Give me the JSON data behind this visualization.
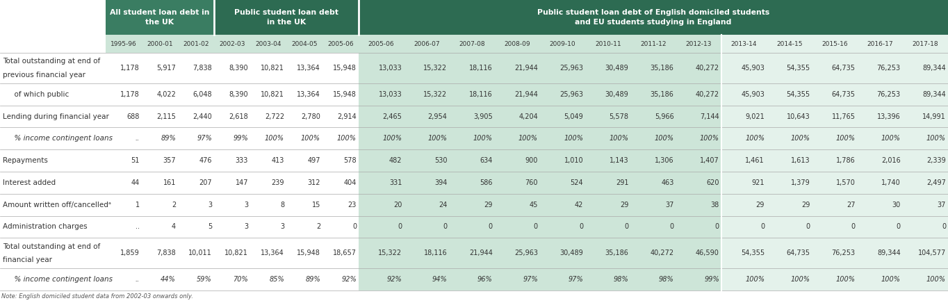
{
  "col_headers_row1_g1": "All student loan debt in\nthe UK",
  "col_headers_row1_g2": "Public student loan debt\nin the UK",
  "col_headers_row1_g3": "Public student loan debt of English domiciled students\nand EU students studying in England",
  "col_headers_row2": [
    "1995-96",
    "2000-01",
    "2001-02",
    "2002-03",
    "2003-04",
    "2004-05",
    "2005-06",
    "2005-06",
    "2006-07",
    "2007-08",
    "2008-09",
    "2009-10",
    "2010-11",
    "2011-12",
    "2012-13",
    "2013-14",
    "2014-15",
    "2015-16",
    "2016-17",
    "2017-18"
  ],
  "rows": [
    {
      "label": "Total outstanding at end of",
      "label2": "previous financial year",
      "indent": 0,
      "double": true,
      "values": [
        "1,178",
        "5,917",
        "7,838",
        "8,390",
        "10,821",
        "13,364",
        "15,948",
        "13,033",
        "15,322",
        "18,116",
        "21,944",
        "25,963",
        "30,489",
        "35,186",
        "40,272",
        "45,903",
        "54,355",
        "64,735",
        "76,253",
        "89,344"
      ]
    },
    {
      "label": "  of which public",
      "indent": 1,
      "double": false,
      "values": [
        "1,178",
        "4,022",
        "6,048",
        "8,390",
        "10,821",
        "13,364",
        "15,948",
        "13,033",
        "15,322",
        "18,116",
        "21,944",
        "25,963",
        "30,489",
        "35,186",
        "40,272",
        "45,903",
        "54,355",
        "64,735",
        "76,253",
        "89,344"
      ]
    },
    {
      "label": "Lending during financial year",
      "indent": 0,
      "double": false,
      "values": [
        "688",
        "2,115",
        "2,440",
        "2,618",
        "2,722",
        "2,780",
        "2,914",
        "2,465",
        "2,954",
        "3,905",
        "4,204",
        "5,049",
        "5,578",
        "5,966",
        "7,144",
        "9,021",
        "10,643",
        "11,765",
        "13,396",
        "14,991"
      ]
    },
    {
      "label": "  % income contingent loans",
      "indent": 1,
      "italic": true,
      "double": false,
      "values": [
        "..",
        "89%",
        "97%",
        "99%",
        "100%",
        "100%",
        "100%",
        "100%",
        "100%",
        "100%",
        "100%",
        "100%",
        "100%",
        "100%",
        "100%",
        "100%",
        "100%",
        "100%",
        "100%",
        "100%"
      ]
    },
    {
      "label": "Repayments",
      "indent": 0,
      "double": false,
      "values": [
        "51",
        "357",
        "476",
        "333",
        "413",
        "497",
        "578",
        "482",
        "530",
        "634",
        "900",
        "1,010",
        "1,143",
        "1,306",
        "1,407",
        "1,461",
        "1,613",
        "1,786",
        "2,016",
        "2,339"
      ]
    },
    {
      "label": "Interest added",
      "indent": 0,
      "double": false,
      "values": [
        "44",
        "161",
        "207",
        "147",
        "239",
        "312",
        "404",
        "331",
        "394",
        "586",
        "760",
        "524",
        "291",
        "463",
        "620",
        "921",
        "1,379",
        "1,570",
        "1,740",
        "2,497"
      ]
    },
    {
      "label": "Amount written off/cancelledᵃ",
      "indent": 0,
      "double": false,
      "values": [
        "1",
        "2",
        "3",
        "3",
        "8",
        "15",
        "23",
        "20",
        "24",
        "29",
        "45",
        "42",
        "29",
        "37",
        "38",
        "29",
        "29",
        "27",
        "30",
        "37"
      ]
    },
    {
      "label": "Administration charges",
      "indent": 0,
      "double": false,
      "values": [
        "..",
        "4",
        "5",
        "3",
        "3",
        "2",
        "0",
        "0",
        "0",
        "0",
        "0",
        "0",
        "0",
        "0",
        "0",
        "0",
        "0",
        "0",
        "0",
        "0"
      ]
    },
    {
      "label": "Total outstanding at end of",
      "label2": "financial year",
      "indent": 0,
      "double": true,
      "values": [
        "1,859",
        "7,838",
        "10,011",
        "10,821",
        "13,364",
        "15,948",
        "18,657",
        "15,322",
        "18,116",
        "21,944",
        "25,963",
        "30,489",
        "35,186",
        "40,272",
        "46,590",
        "54,355",
        "64,735",
        "76,253",
        "89,344",
        "104,577"
      ]
    },
    {
      "label": "  % income contingent loans",
      "indent": 1,
      "italic": true,
      "double": false,
      "values": [
        "..",
        "44%",
        "59%",
        "70%",
        "85%",
        "89%",
        "92%",
        "92%",
        "94%",
        "96%",
        "97%",
        "97%",
        "98%",
        "98%",
        "99%",
        "100%",
        "100%",
        "100%",
        "100%",
        "100%"
      ]
    }
  ],
  "dark_green": "#3a7d62",
  "mid_green": "#2d6b52",
  "cell_green_mid": "#cde5d8",
  "cell_green_light": "#e4f2eb",
  "body_text": "#333333",
  "white": "#ffffff",
  "footnote": "Note: English domiciled student data from 2002-03 onwards only."
}
